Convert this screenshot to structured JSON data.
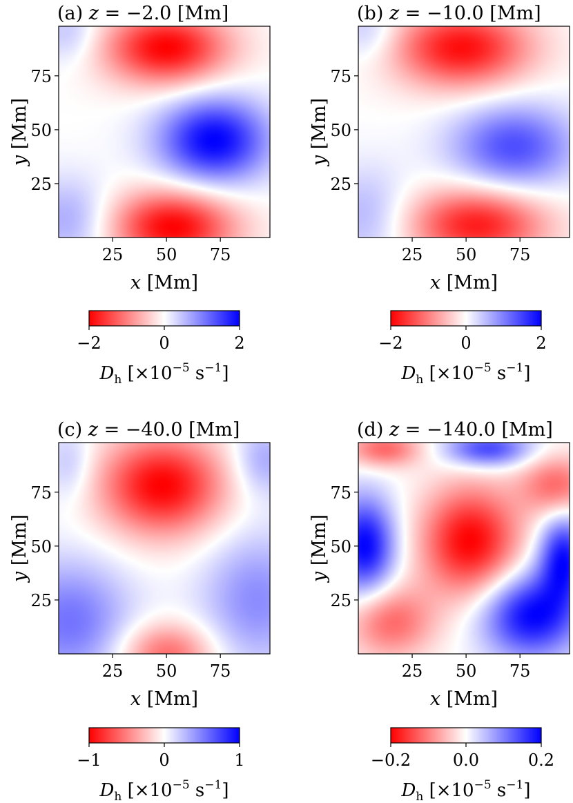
{
  "chart_data": [
    {
      "type": "heatmap",
      "title": "(a) z = −2.0 [Mm]",
      "title_parts": {
        "prefix": "(a)",
        "var": "z",
        "rest": "= −2.0 [Mm]"
      },
      "xlabel": {
        "var": "x",
        "unit": "[Mm]"
      },
      "ylabel": {
        "var": "y",
        "unit": "[Mm]"
      },
      "xlim": [
        0,
        98
      ],
      "ylim": [
        0,
        98
      ],
      "xticks": [
        25,
        50,
        75
      ],
      "yticks": [
        25,
        50,
        75
      ],
      "field_blobs": [
        {
          "x": 50,
          "y": 88,
          "sx": 20,
          "sy": 12,
          "amp": -2.0,
          "shape": "ridge toward upper-left, x 12-78, y 62-98"
        },
        {
          "x": 72,
          "y": 45,
          "sx": 18,
          "sy": 14,
          "amp": 2.0
        },
        {
          "x": 53,
          "y": 5,
          "sx": 20,
          "sy": 12,
          "amp": -2.0
        },
        {
          "x": 5,
          "y": 8,
          "sx": 14,
          "sy": 14,
          "amp": 0.7
        },
        {
          "x": 5,
          "y": 95,
          "sx": 10,
          "sy": 10,
          "amp": 0.5
        }
      ],
      "colorbar": {
        "cmap": "bwr_r",
        "low_color": "#ff0000",
        "mid_color": "#ffffff",
        "high_color": "#0000ff",
        "vmin": -2,
        "vmax": 2,
        "ticks": [
          "−2",
          "0",
          "2"
        ],
        "label": {
          "var": "D",
          "sub": "h",
          "text": "[×10",
          "exp": "−5",
          "unit": "s",
          "unit_exp": "−1",
          "close": "]"
        }
      }
    },
    {
      "type": "heatmap",
      "title": "(b) z = −10.0 [Mm]",
      "title_parts": {
        "prefix": "(b)",
        "var": "z",
        "rest": "= −10.0 [Mm]"
      },
      "xlabel": {
        "var": "x",
        "unit": "[Mm]"
      },
      "ylabel": {
        "var": "y",
        "unit": "[Mm]"
      },
      "xlim": [
        0,
        98
      ],
      "ylim": [
        0,
        98
      ],
      "xticks": [
        25,
        50,
        75
      ],
      "yticks": [
        25,
        50,
        75
      ],
      "field_blobs": [
        {
          "x": 48,
          "y": 88,
          "sx": 22,
          "sy": 13,
          "amp": -1.9,
          "shape": "ridge toward upper-left"
        },
        {
          "x": 72,
          "y": 42,
          "sx": 20,
          "sy": 14,
          "amp": 1.4
        },
        {
          "x": 55,
          "y": 6,
          "sx": 22,
          "sy": 12,
          "amp": -1.8
        },
        {
          "x": 4,
          "y": 10,
          "sx": 14,
          "sy": 16,
          "amp": 0.6
        },
        {
          "x": 5,
          "y": 96,
          "sx": 10,
          "sy": 10,
          "amp": 0.5
        }
      ],
      "colorbar": {
        "cmap": "bwr_r",
        "low_color": "#ff0000",
        "mid_color": "#ffffff",
        "high_color": "#0000ff",
        "vmin": -2,
        "vmax": 2,
        "ticks": [
          "−2",
          "0",
          "2"
        ],
        "label": {
          "var": "D",
          "sub": "h",
          "text": "[×10",
          "exp": "−5",
          "unit": "s",
          "unit_exp": "−1",
          "close": "]"
        }
      }
    },
    {
      "type": "heatmap",
      "title": "(c) z = −40.0 [Mm]",
      "title_parts": {
        "prefix": "(c)",
        "var": "z",
        "rest": "= −40.0 [Mm]"
      },
      "xlabel": {
        "var": "x",
        "unit": "[Mm]"
      },
      "ylabel": {
        "var": "y",
        "unit": "[Mm]"
      },
      "xlim": [
        0,
        98
      ],
      "ylim": [
        0,
        98
      ],
      "xticks": [
        25,
        50,
        75
      ],
      "yticks": [
        25,
        50,
        75
      ],
      "field_blobs": [
        {
          "x": 48,
          "y": 78,
          "sx": 20,
          "sy": 16,
          "amp": -1.0
        },
        {
          "x": 50,
          "y": 0,
          "sx": 15,
          "sy": 10,
          "amp": -0.6
        },
        {
          "x": 5,
          "y": 15,
          "sx": 20,
          "sy": 20,
          "amp": 0.55
        },
        {
          "x": 92,
          "y": 25,
          "sx": 18,
          "sy": 22,
          "amp": 0.45
        },
        {
          "x": 95,
          "y": 90,
          "sx": 10,
          "sy": 12,
          "amp": 0.35
        },
        {
          "x": 5,
          "y": 88,
          "sx": 8,
          "sy": 12,
          "amp": 0.25
        }
      ],
      "colorbar": {
        "cmap": "bwr_r",
        "low_color": "#ff0000",
        "mid_color": "#ffffff",
        "high_color": "#0000ff",
        "vmin": -1,
        "vmax": 1,
        "ticks": [
          "−1",
          "0",
          "1"
        ],
        "label": {
          "var": "D",
          "sub": "h",
          "text": "[×10",
          "exp": "−5",
          "unit": "s",
          "unit_exp": "−1",
          "close": "]"
        }
      }
    },
    {
      "type": "heatmap",
      "title": "(d) z = −140.0 [Mm]",
      "title_parts": {
        "prefix": "(d)",
        "var": "z",
        "rest": "= −140.0 [Mm]"
      },
      "xlabel": {
        "var": "x",
        "unit": "[Mm]"
      },
      "ylabel": {
        "var": "y",
        "unit": "[Mm]"
      },
      "xlim": [
        0,
        98
      ],
      "ylim": [
        0,
        98
      ],
      "xticks": [
        25,
        50,
        75
      ],
      "yticks": [
        25,
        50,
        75
      ],
      "field_blobs": [
        {
          "x": 52,
          "y": 52,
          "sx": 16,
          "sy": 18,
          "amp": -0.2,
          "shape": "diagonal band from lower-left to upper-right"
        },
        {
          "x": 15,
          "y": 15,
          "sx": 14,
          "sy": 12,
          "amp": -0.12
        },
        {
          "x": 92,
          "y": 78,
          "sx": 12,
          "sy": 10,
          "amp": -0.12
        },
        {
          "x": 12,
          "y": 95,
          "sx": 12,
          "sy": 6,
          "amp": -0.12
        },
        {
          "x": 3,
          "y": 50,
          "sx": 10,
          "sy": 16,
          "amp": 0.2
        },
        {
          "x": 80,
          "y": 18,
          "sx": 16,
          "sy": 14,
          "amp": 0.2
        },
        {
          "x": 95,
          "y": 45,
          "sx": 8,
          "sy": 14,
          "amp": 0.18
        },
        {
          "x": 60,
          "y": 95,
          "sx": 14,
          "sy": 6,
          "amp": 0.15
        }
      ],
      "colorbar": {
        "cmap": "bwr_r",
        "low_color": "#ff0000",
        "mid_color": "#ffffff",
        "high_color": "#0000ff",
        "vmin": -0.2,
        "vmax": 0.2,
        "ticks": [
          "−0.2",
          "0.0",
          "0.2"
        ],
        "label": {
          "var": "D",
          "sub": "h",
          "text": "[×10",
          "exp": "−5",
          "unit": "s",
          "unit_exp": "−1",
          "close": "]"
        }
      }
    }
  ]
}
